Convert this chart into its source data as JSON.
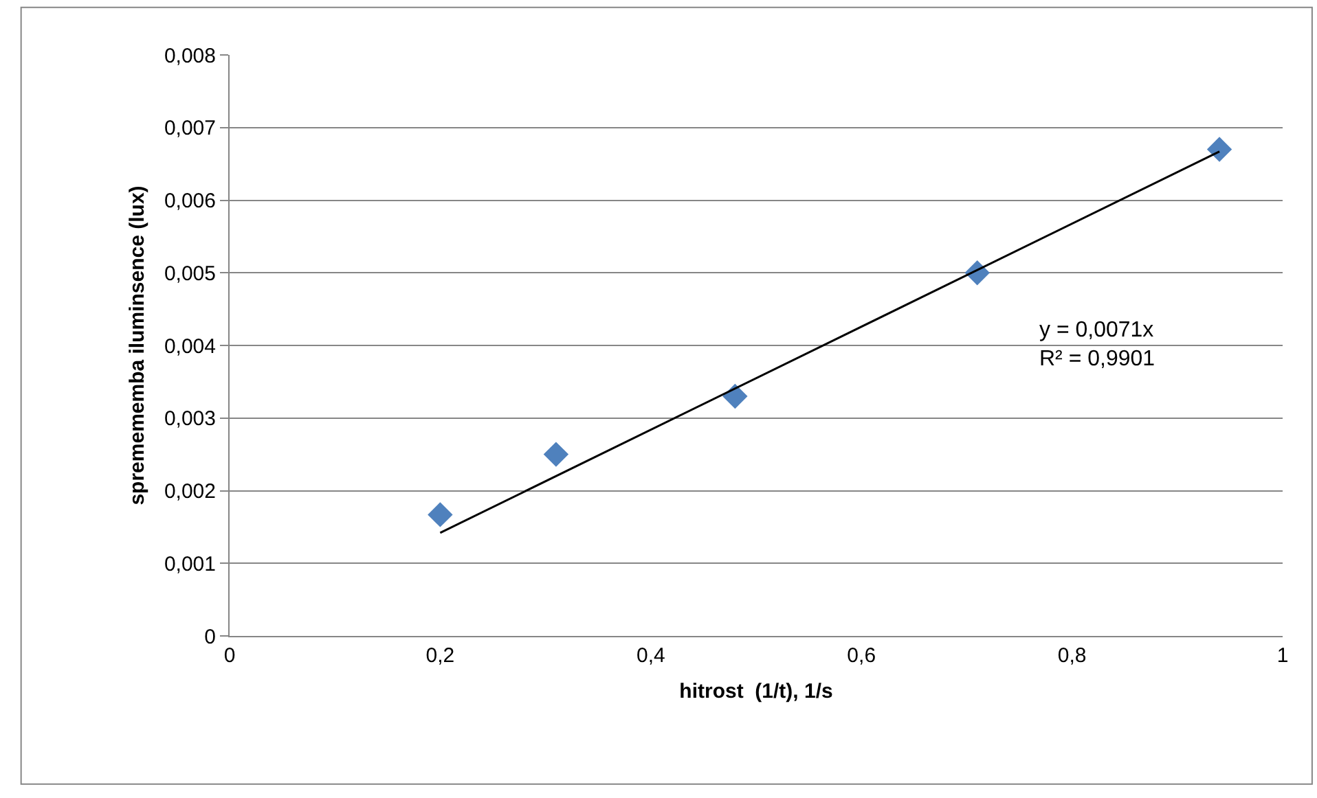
{
  "chart_data": {
    "type": "scatter",
    "xlabel": "hitrost  (1/t), 1/s",
    "ylabel": "spremememba iluminsence (lux)",
    "x": [
      0.2,
      0.31,
      0.48,
      0.71,
      0.94
    ],
    "series": [
      {
        "color": "#4f81bd",
        "marker": "diamond",
        "values": [
          0.00167,
          0.0025,
          0.0033,
          0.005,
          0.0067
        ]
      },
      {
        "type": "line",
        "color": "#000000",
        "marker": "none",
        "line_style": "solid",
        "x": [
          0.2,
          0.94
        ],
        "values": [
          0.00142,
          0.00667
        ]
      }
    ],
    "annotations": [
      "y = 0,0071x\nR² = 0,9901"
    ],
    "xlim": [
      0,
      1
    ],
    "xticks": [
      0,
      {
        "value": 0.2,
        "label": "0,2"
      },
      {
        "value": 0.4,
        "label": "0,4"
      },
      {
        "value": 0.6,
        "label": "0,6"
      },
      {
        "value": 0.8,
        "label": "0,8"
      },
      1
    ],
    "ylim": [
      0,
      0.008
    ],
    "yticks": [
      0,
      {
        "value": 0.001,
        "label": "0,001"
      },
      {
        "value": 0.002,
        "label": "0,002"
      },
      {
        "value": 0.003,
        "label": "0,003"
      },
      {
        "value": 0.004,
        "label": "0,004"
      },
      {
        "value": 0.005,
        "label": "0,005"
      },
      {
        "value": 0.006,
        "label": "0,006"
      },
      {
        "value": 0.007,
        "label": "0,007"
      },
      {
        "value": 0.008,
        "label": "0,008"
      }
    ],
    "grid": "y"
  }
}
